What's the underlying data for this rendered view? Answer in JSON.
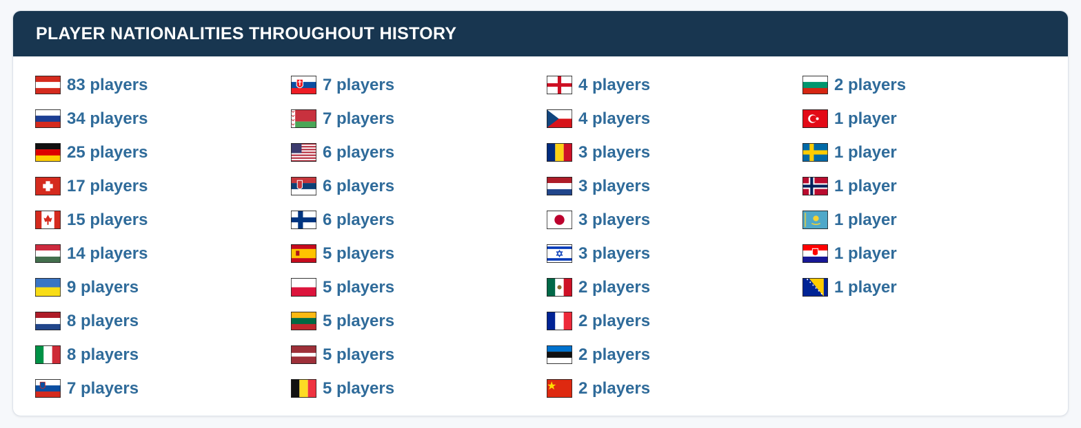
{
  "header": {
    "title": "PLAYER NATIONALITIES THROUGHOUT HISTORY"
  },
  "items": [
    "83 players",
    "34 players",
    "25 players",
    "17 players",
    "15 players",
    "14 players",
    "9 players",
    "8 players",
    "8 players",
    "7 players",
    "7 players",
    "7 players",
    "6 players",
    "6 players",
    "6 players",
    "5 players",
    "5 players",
    "5 players",
    "5 players",
    "5 players",
    "4 players",
    "4 players",
    "3 players",
    "3 players",
    "3 players",
    "3 players",
    "2 players",
    "2 players",
    "2 players",
    "2 players",
    "2 players",
    "1 player",
    "1 player",
    "1 player",
    "1 player",
    "1 player",
    "1 player"
  ]
}
